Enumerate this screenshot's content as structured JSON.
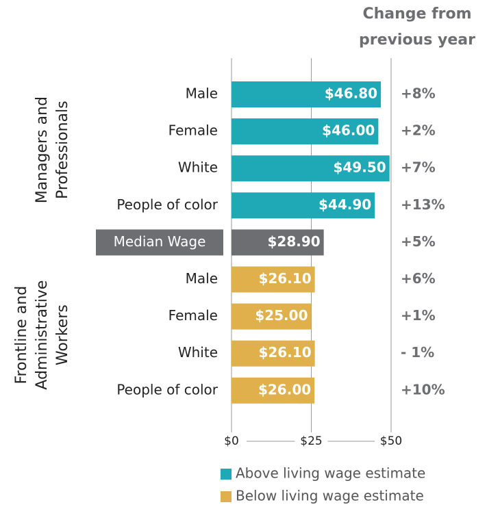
{
  "chart_data": {
    "type": "bar",
    "orientation": "horizontal",
    "change_header_lines": [
      "Change from",
      "previous year"
    ],
    "categories": [
      "Male",
      "Female",
      "White",
      "People of color",
      "Median Wage",
      "Male",
      "Female",
      "White",
      "People of color"
    ],
    "values": [
      46.8,
      46.0,
      49.5,
      44.9,
      28.9,
      26.1,
      25.0,
      26.1,
      26.0
    ],
    "value_labels": [
      "$46.80",
      "$46.00",
      "$49.50",
      "$44.90",
      "$28.90",
      "$26.10",
      "$25.00",
      "$26.10",
      "$26.00"
    ],
    "colors": [
      "#1fa9b6",
      "#1fa9b6",
      "#1fa9b6",
      "#1fa9b6",
      "#6d6e71",
      "#e0b04c",
      "#e0b04c",
      "#e0b04c",
      "#e0b04c"
    ],
    "change_labels": [
      "+8%",
      "+2%",
      "+7%",
      "+13%",
      "+5%",
      "+6%",
      "+1%",
      "- 1%",
      "+10%"
    ],
    "groups": [
      {
        "label_lines": [
          "Managers and",
          "Professionals"
        ],
        "start": 0,
        "end": 3
      },
      {
        "label_lines": [
          "Frontline and",
          "Administrative",
          "Workers"
        ],
        "start": 5,
        "end": 8
      }
    ],
    "xlim": [
      0,
      50
    ],
    "xticks": [
      {
        "value": 0,
        "label": "$0"
      },
      {
        "value": 25,
        "label": "$25"
      },
      {
        "value": 50,
        "label": "$50"
      }
    ],
    "grid": true,
    "legend": [
      {
        "name": "Above living wage estimate",
        "color": "#1fa9b6"
      },
      {
        "name": "Below living wage estimate",
        "color": "#e0b04c"
      }
    ]
  }
}
